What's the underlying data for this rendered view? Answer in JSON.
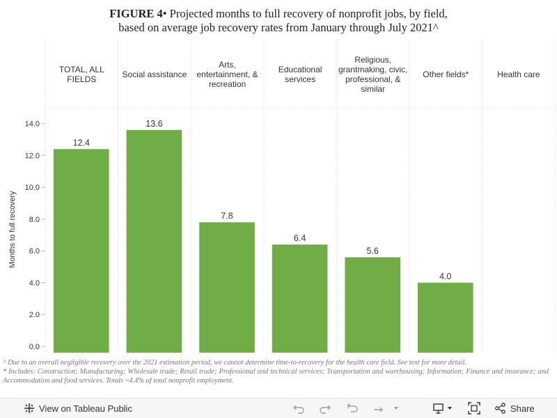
{
  "title": {
    "prefix": "FIGURE 4",
    "rest_line1": "• Projected months to full recovery of nonprofit jobs, by field,",
    "line2": "based on average job recovery rates from January through July 2021^"
  },
  "chart_data": {
    "type": "bar",
    "categories": [
      [
        "TOTAL, ALL",
        "FIELDS"
      ],
      [
        "Social assistance"
      ],
      [
        "Arts,",
        "entertainment, &",
        "recreation"
      ],
      [
        "Educational",
        "services"
      ],
      [
        "Religious,",
        "grantmaking, civic,",
        "professional, &",
        "similar"
      ],
      [
        "Other fields*"
      ],
      [
        "Health care"
      ]
    ],
    "values": [
      12.4,
      13.6,
      7.8,
      6.4,
      5.6,
      4.0,
      null
    ],
    "value_labels": [
      "12.4",
      "13.6",
      "7.8",
      "6.4",
      "5.6",
      "4.0",
      ""
    ],
    "ylabel": "Months to full recovery",
    "yticks": [
      "0.0",
      "2.0",
      "4.0",
      "6.0",
      "8.0",
      "10.0",
      "12.0",
      "14.0"
    ],
    "ylim": [
      0,
      14.6
    ],
    "bar_color": "#70ad47"
  },
  "notes": {
    "line1": "^ Due to an overall negligible recovery over the 2021 estimation period, we cannot determine time-to-recovery for the health care field. See text for more detail.",
    "line2": "* Includes: Construction; Manufacturing; Wholesale trade; Retail trade; Professional and technical services; Transportation and warehousing; Information; Finance and insurance; and Accommodation and food services. Totals ~4.4% of total nonprofit employment."
  },
  "toolbar": {
    "view_label": "View on Tableau Public",
    "share_label": "Share"
  }
}
